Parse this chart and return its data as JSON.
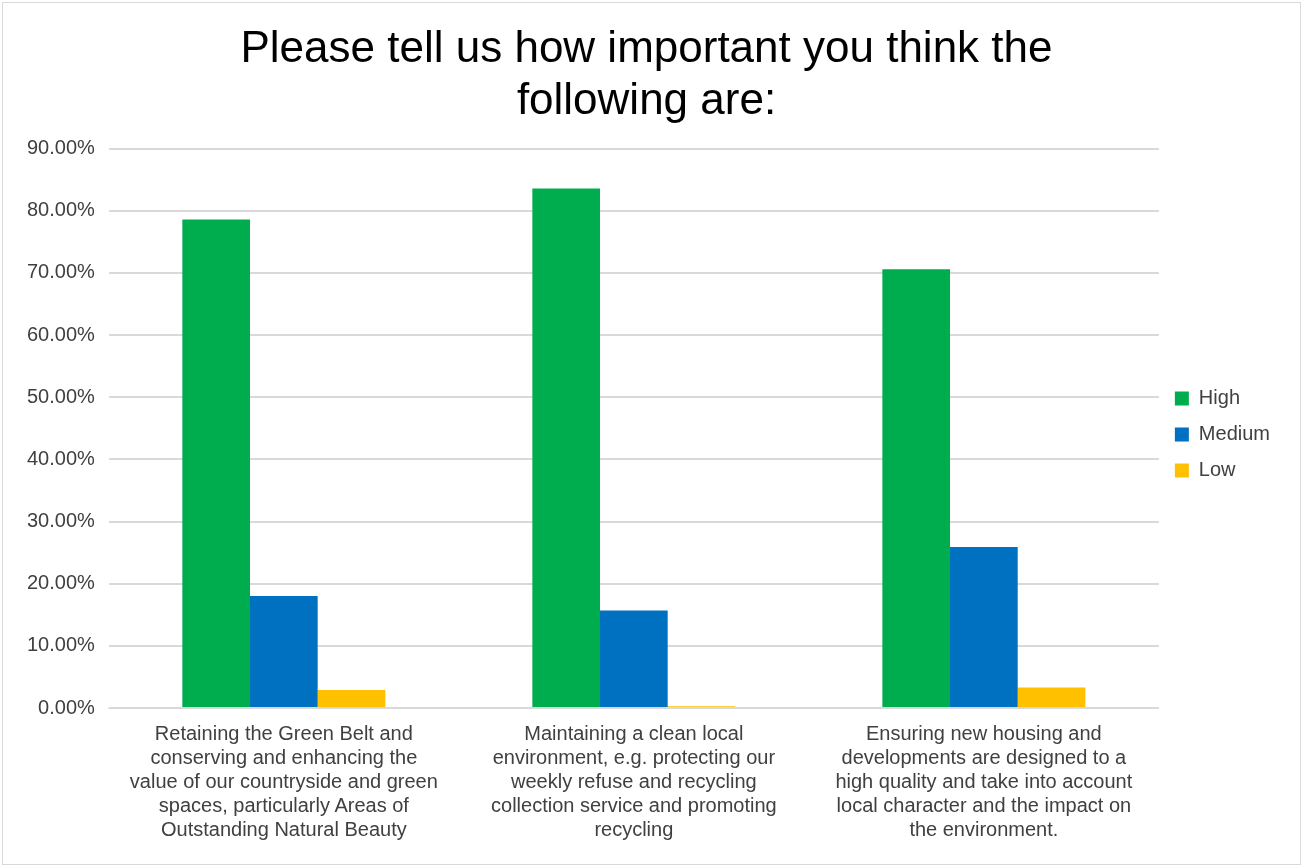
{
  "chart_data": {
    "type": "bar",
    "title": "Please tell us how important you think the following are:",
    "categories": [
      "Retaining the Green Belt and conserving and enhancing the value of our countryside and green spaces, particularly Areas of Outstanding Natural Beauty",
      "Maintaining a clean local environment, e.g. protecting our weekly refuse and recycling collection service and promoting recycling",
      "Ensuring new housing and developments are designed to a high quality and take into account local character and the impact on the environment."
    ],
    "series": [
      {
        "name": "High",
        "color": "#00ad4e",
        "values": [
          78.6,
          83.6,
          70.6
        ]
      },
      {
        "name": "Medium",
        "color": "#0070c0",
        "values": [
          18.0,
          15.7,
          25.9
        ]
      },
      {
        "name": "Low",
        "color": "#ffc000",
        "values": [
          2.9,
          0.3,
          3.3
        ]
      }
    ],
    "ylim": [
      0,
      90
    ],
    "yticks": [
      {
        "value": 0,
        "label": "0.00%"
      },
      {
        "value": 10,
        "label": "10.00%"
      },
      {
        "value": 20,
        "label": "20.00%"
      },
      {
        "value": 30,
        "label": "30.00%"
      },
      {
        "value": 40,
        "label": "40.00%"
      },
      {
        "value": 50,
        "label": "50.00%"
      },
      {
        "value": 60,
        "label": "60.00%"
      },
      {
        "value": 70,
        "label": "70.00%"
      },
      {
        "value": 80,
        "label": "80.00%"
      },
      {
        "value": 90,
        "label": "90.00%"
      }
    ],
    "grid": "y",
    "legend": "right"
  }
}
